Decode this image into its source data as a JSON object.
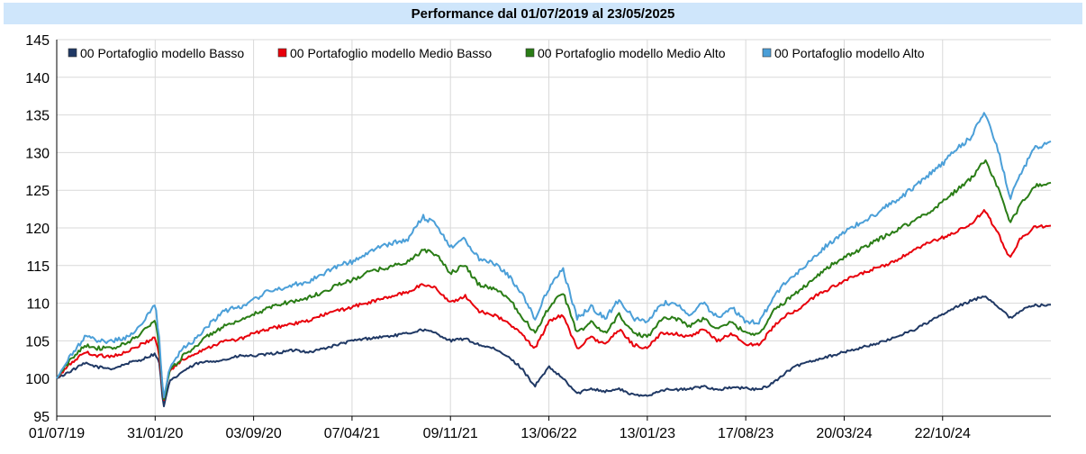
{
  "chart_data": {
    "type": "line",
    "title": "Performance dal 01/07/2019 al 23/05/2025",
    "xlabel": "",
    "ylabel": "",
    "ylim": [
      95,
      145
    ],
    "yticks": [
      95,
      100,
      105,
      110,
      115,
      120,
      125,
      130,
      135,
      140,
      145
    ],
    "xticks": [
      "01/07/19",
      "31/01/20",
      "03/09/20",
      "07/04/21",
      "09/11/21",
      "13/06/22",
      "13/01/23",
      "17/08/23",
      "20/03/24",
      "22/10/24"
    ],
    "grid": true,
    "legend_position": "top-left",
    "x_range_months": [
      0,
      70.7
    ],
    "series": [
      {
        "name": "00 Portafoglio modello Basso",
        "color": "#1f3864",
        "points": [
          [
            0,
            100
          ],
          [
            1,
            101
          ],
          [
            2,
            102
          ],
          [
            3,
            101.5
          ],
          [
            4,
            101.3
          ],
          [
            5,
            102
          ],
          [
            6,
            102.5
          ],
          [
            7,
            103.3
          ],
          [
            7.3,
            102
          ],
          [
            7.6,
            96
          ],
          [
            8,
            99.5
          ],
          [
            9,
            101
          ],
          [
            10,
            102
          ],
          [
            11,
            102.3
          ],
          [
            12,
            102.5
          ],
          [
            13,
            103
          ],
          [
            14,
            103
          ],
          [
            15,
            103.2
          ],
          [
            16,
            103.5
          ],
          [
            17,
            103.8
          ],
          [
            18,
            103.5
          ],
          [
            19,
            104
          ],
          [
            20,
            104.5
          ],
          [
            21,
            105
          ],
          [
            22,
            105.3
          ],
          [
            23,
            105.5
          ],
          [
            24,
            105.7
          ],
          [
            25,
            106
          ],
          [
            26,
            106.5
          ],
          [
            27,
            106
          ],
          [
            28,
            105
          ],
          [
            29,
            105.3
          ],
          [
            30,
            104.5
          ],
          [
            31,
            104
          ],
          [
            32,
            103
          ],
          [
            33,
            101.5
          ],
          [
            34,
            99
          ],
          [
            35,
            101.5
          ],
          [
            36,
            100
          ],
          [
            37,
            98
          ],
          [
            38,
            98.7
          ],
          [
            39,
            98.3
          ],
          [
            40,
            98.6
          ],
          [
            41,
            97.8
          ],
          [
            42,
            97.7
          ],
          [
            43,
            98.5
          ],
          [
            44,
            98.5
          ],
          [
            45,
            98.6
          ],
          [
            46,
            99
          ],
          [
            47,
            98.5
          ],
          [
            48,
            98.8
          ],
          [
            49,
            98.7
          ],
          [
            50,
            98.5
          ],
          [
            51,
            99.5
          ],
          [
            52,
            101
          ],
          [
            53,
            102
          ],
          [
            54,
            102.5
          ],
          [
            55,
            103
          ],
          [
            56,
            103.5
          ],
          [
            57,
            104
          ],
          [
            58,
            104.5
          ],
          [
            59,
            105
          ],
          [
            60,
            105.8
          ],
          [
            61,
            106.5
          ],
          [
            62,
            107.5
          ],
          [
            63,
            108.5
          ],
          [
            64,
            109.5
          ],
          [
            65,
            110.3
          ],
          [
            66,
            111
          ],
          [
            67,
            109.5
          ],
          [
            67.8,
            108
          ],
          [
            68.5,
            109
          ],
          [
            69.5,
            109.7
          ],
          [
            70.7,
            109.8
          ]
        ]
      },
      {
        "name": "00 Portafoglio modello Medio Basso",
        "color": "#e8000b",
        "points": [
          [
            0,
            100
          ],
          [
            1,
            102
          ],
          [
            2,
            103.5
          ],
          [
            3,
            103
          ],
          [
            4,
            103
          ],
          [
            5,
            103.5
          ],
          [
            6,
            104.5
          ],
          [
            7,
            105.5
          ],
          [
            7.3,
            103
          ],
          [
            7.6,
            97
          ],
          [
            8,
            101
          ],
          [
            9,
            102.5
          ],
          [
            10,
            103.5
          ],
          [
            11,
            104.3
          ],
          [
            12,
            105
          ],
          [
            13,
            105.2
          ],
          [
            14,
            106
          ],
          [
            15,
            106.5
          ],
          [
            16,
            107
          ],
          [
            17,
            107.3
          ],
          [
            18,
            107.7
          ],
          [
            19,
            108.5
          ],
          [
            20,
            109
          ],
          [
            21,
            109.5
          ],
          [
            22,
            110
          ],
          [
            23,
            110.5
          ],
          [
            24,
            111
          ],
          [
            25,
            111.5
          ],
          [
            26,
            112.5
          ],
          [
            27,
            112
          ],
          [
            28,
            110
          ],
          [
            29,
            111
          ],
          [
            30,
            109
          ],
          [
            31,
            108.5
          ],
          [
            32,
            107.5
          ],
          [
            33,
            106
          ],
          [
            34,
            104
          ],
          [
            35,
            107.5
          ],
          [
            36,
            108.5
          ],
          [
            37,
            104
          ],
          [
            38,
            105.5
          ],
          [
            39,
            104.5
          ],
          [
            40,
            106.5
          ],
          [
            41,
            104.5
          ],
          [
            42,
            104
          ],
          [
            43,
            106
          ],
          [
            44,
            106
          ],
          [
            45,
            105.5
          ],
          [
            46,
            106.5
          ],
          [
            47,
            105
          ],
          [
            48,
            106
          ],
          [
            49,
            104.5
          ],
          [
            50,
            104.5
          ],
          [
            51,
            107
          ],
          [
            52,
            108.5
          ],
          [
            53,
            109.5
          ],
          [
            54,
            111
          ],
          [
            55,
            112
          ],
          [
            56,
            113
          ],
          [
            57,
            113.7
          ],
          [
            58,
            114.5
          ],
          [
            59,
            115
          ],
          [
            60,
            116
          ],
          [
            61,
            117
          ],
          [
            62,
            118
          ],
          [
            63,
            118.7
          ],
          [
            64,
            119.5
          ],
          [
            65,
            120.5
          ],
          [
            66,
            122.3
          ],
          [
            67,
            119
          ],
          [
            67.8,
            116
          ],
          [
            68.5,
            118.5
          ],
          [
            69.5,
            120
          ],
          [
            70.7,
            120.3
          ]
        ]
      },
      {
        "name": "00 Portafoglio modello Medio Alto",
        "color": "#2a7d16",
        "points": [
          [
            0,
            100
          ],
          [
            1,
            102.5
          ],
          [
            2,
            104.5
          ],
          [
            3,
            104
          ],
          [
            4,
            104
          ],
          [
            5,
            104.7
          ],
          [
            6,
            106
          ],
          [
            7,
            107.8
          ],
          [
            7.3,
            104
          ],
          [
            7.6,
            97
          ],
          [
            8,
            101
          ],
          [
            9,
            103
          ],
          [
            10,
            104.5
          ],
          [
            11,
            106
          ],
          [
            12,
            107
          ],
          [
            13,
            107.5
          ],
          [
            14,
            108.5
          ],
          [
            15,
            109.3
          ],
          [
            16,
            110
          ],
          [
            17,
            110.3
          ],
          [
            18,
            110.8
          ],
          [
            19,
            111.5
          ],
          [
            20,
            112.5
          ],
          [
            21,
            113
          ],
          [
            22,
            114
          ],
          [
            23,
            114.5
          ],
          [
            24,
            115
          ],
          [
            25,
            115.5
          ],
          [
            26,
            117
          ],
          [
            27,
            116.5
          ],
          [
            28,
            114
          ],
          [
            29,
            115
          ],
          [
            30,
            112.5
          ],
          [
            31,
            112
          ],
          [
            32,
            111
          ],
          [
            33,
            108.5
          ],
          [
            34,
            106
          ],
          [
            35,
            109.5
          ],
          [
            36,
            111.5
          ],
          [
            37,
            106
          ],
          [
            38,
            107.5
          ],
          [
            39,
            106
          ],
          [
            40,
            108.5
          ],
          [
            41,
            106
          ],
          [
            42,
            105.5
          ],
          [
            43,
            108
          ],
          [
            44,
            108
          ],
          [
            45,
            107
          ],
          [
            46,
            108
          ],
          [
            47,
            106.5
          ],
          [
            48,
            107.5
          ],
          [
            49,
            106
          ],
          [
            50,
            106
          ],
          [
            51,
            109
          ],
          [
            52,
            110.5
          ],
          [
            53,
            112
          ],
          [
            54,
            113.5
          ],
          [
            55,
            115
          ],
          [
            56,
            116
          ],
          [
            57,
            117
          ],
          [
            58,
            118
          ],
          [
            59,
            119
          ],
          [
            60,
            120
          ],
          [
            61,
            121
          ],
          [
            62,
            122
          ],
          [
            63,
            123.5
          ],
          [
            64,
            125
          ],
          [
            65,
            126.5
          ],
          [
            66,
            129
          ],
          [
            67,
            125
          ],
          [
            67.8,
            120.5
          ],
          [
            68.5,
            123
          ],
          [
            69.5,
            125.5
          ],
          [
            70.7,
            126
          ]
        ]
      },
      {
        "name": "00 Portafoglio modello Alto",
        "color": "#4b9fd8",
        "points": [
          [
            0,
            100
          ],
          [
            1,
            103
          ],
          [
            2,
            105.5
          ],
          [
            3,
            105
          ],
          [
            4,
            105
          ],
          [
            5,
            105.5
          ],
          [
            6,
            107
          ],
          [
            7,
            110
          ],
          [
            7.3,
            105
          ],
          [
            7.6,
            97
          ],
          [
            8,
            101.5
          ],
          [
            9,
            104
          ],
          [
            10,
            105.5
          ],
          [
            11,
            107.5
          ],
          [
            12,
            109
          ],
          [
            13,
            109.5
          ],
          [
            14,
            110.5
          ],
          [
            15,
            111.5
          ],
          [
            16,
            112
          ],
          [
            17,
            112.5
          ],
          [
            18,
            113
          ],
          [
            19,
            114
          ],
          [
            20,
            115
          ],
          [
            21,
            115.5
          ],
          [
            22,
            116.5
          ],
          [
            23,
            117.5
          ],
          [
            24,
            118
          ],
          [
            25,
            118.5
          ],
          [
            26,
            121.5
          ],
          [
            27,
            120.5
          ],
          [
            28,
            117.5
          ],
          [
            29,
            118.5
          ],
          [
            30,
            116
          ],
          [
            31,
            115.5
          ],
          [
            32,
            114
          ],
          [
            33,
            111.5
          ],
          [
            34,
            108
          ],
          [
            35,
            112
          ],
          [
            36,
            114.5
          ],
          [
            37,
            108
          ],
          [
            38,
            109.5
          ],
          [
            39,
            108
          ],
          [
            40,
            110.5
          ],
          [
            41,
            108
          ],
          [
            42,
            107.5
          ],
          [
            43,
            110
          ],
          [
            44,
            110
          ],
          [
            45,
            108.5
          ],
          [
            46,
            110
          ],
          [
            47,
            108
          ],
          [
            48,
            109.5
          ],
          [
            49,
            107.5
          ],
          [
            50,
            107.5
          ],
          [
            51,
            111
          ],
          [
            52,
            113
          ],
          [
            53,
            114.5
          ],
          [
            54,
            116.5
          ],
          [
            55,
            118
          ],
          [
            56,
            119.5
          ],
          [
            57,
            120.5
          ],
          [
            58,
            121.5
          ],
          [
            59,
            123
          ],
          [
            60,
            124
          ],
          [
            61,
            125.5
          ],
          [
            62,
            127
          ],
          [
            63,
            128.5
          ],
          [
            64,
            130.5
          ],
          [
            65,
            132
          ],
          [
            66,
            135.5
          ],
          [
            67,
            130
          ],
          [
            67.8,
            124
          ],
          [
            68.5,
            127
          ],
          [
            69.5,
            130.5
          ],
          [
            70.7,
            131.5
          ]
        ]
      }
    ]
  }
}
